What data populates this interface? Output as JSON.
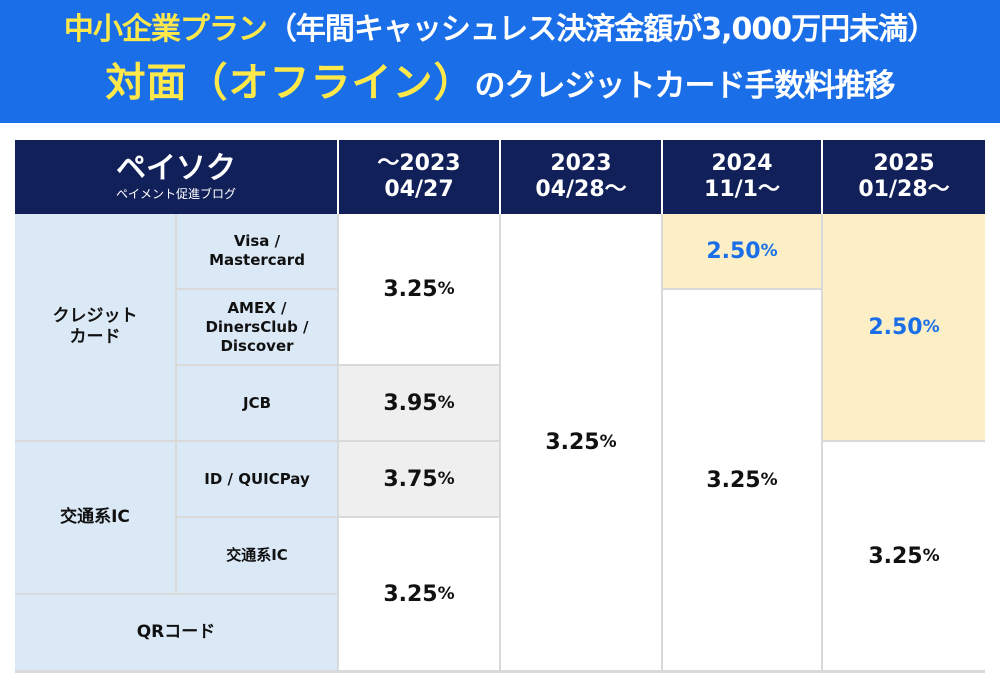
{
  "banner": {
    "line1_accent": "中小企業プラン",
    "line1_rest": "（年間キャッシュレス決済金額が3,000万円未満）",
    "line2_accent": "対面（オフライン）",
    "line2_rest": "のクレジットカード手数料推移",
    "colors": {
      "background": "#1a6fe8",
      "accent": "#ffe94a",
      "text": "#ffffff"
    }
  },
  "table": {
    "brand": {
      "name": "ペイソク",
      "subtitle": "ペイメント促進ブログ"
    },
    "columns": [
      {
        "line1": "〜2023",
        "line2": "04/27"
      },
      {
        "line1": "2023",
        "line2": "04/28〜"
      },
      {
        "line1": "2024",
        "line2": "11/1〜"
      },
      {
        "line1": "2025",
        "line2": "01/28〜"
      }
    ],
    "row_groups": {
      "credit": "クレジット\nカード",
      "transit": "交通系IC",
      "qr": "QRコード"
    },
    "rows": {
      "visa": "Visa /\nMastercard",
      "amex": "AMEX /\nDinersClub /\nDiscover",
      "jcb": "JCB",
      "idq": "ID / QUICPay",
      "transit_ic": "交通系IC"
    },
    "cells": {
      "col1_visa_amex": "3.25",
      "col1_jcb": "3.95",
      "col1_idq": "3.75",
      "col1_tic_qr": "3.25",
      "col2_all": "3.25",
      "col3_visa": "2.50",
      "col3_rest": "3.25",
      "col4_credit": "2.50",
      "col4_rest": "3.25"
    },
    "unit": "%",
    "colors": {
      "header_bg": "#12205a",
      "label_bg": "#dbe8f6",
      "highlight_bg": "#fcefc6",
      "highlight_text": "#1a6fe8",
      "grey_bg": "#efefef"
    }
  }
}
